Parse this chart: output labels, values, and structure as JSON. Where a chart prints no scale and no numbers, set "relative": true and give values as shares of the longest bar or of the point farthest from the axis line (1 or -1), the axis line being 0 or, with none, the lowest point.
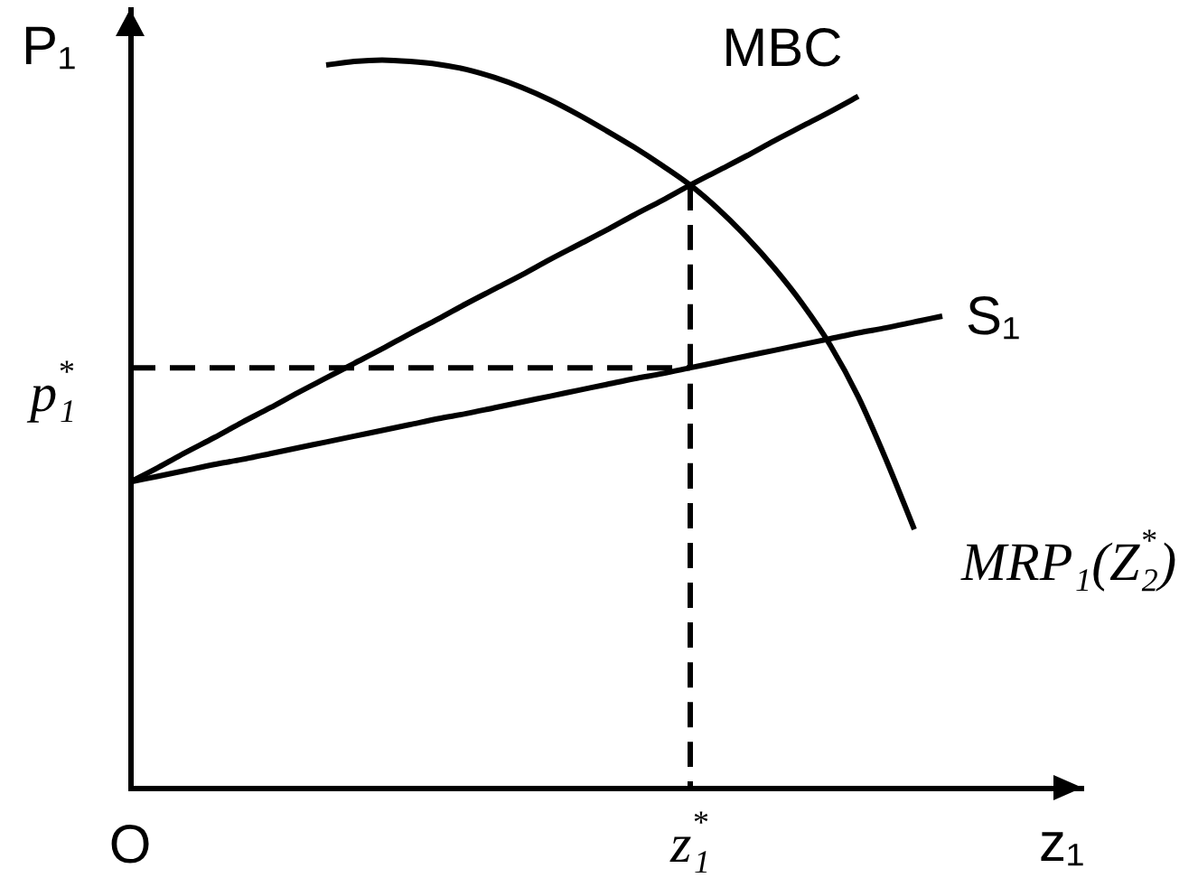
{
  "chart_data": {
    "type": "line",
    "relative": true,
    "ylabel": "P₁",
    "xlabel": "z₁",
    "marker": "none",
    "line_style": "solid",
    "categories": [
      "O",
      null,
      null,
      null,
      null,
      null,
      null,
      null,
      null,
      null,
      null,
      null,
      null,
      null,
      null,
      null,
      null,
      null,
      null,
      null,
      "z₁$^{*}$",
      null,
      null,
      null,
      null,
      null,
      null,
      null,
      null,
      null,
      null,
      null,
      null,
      null,
      null
    ],
    "annotations": [
      {
        "text": "p₁$^{*}$",
        "x": "O",
        "y": 0.577
      }
    ],
    "series": [
      {
        "name": "MBC",
        "color": "#000000",
        "values": [
          0.42,
          0.44,
          0.461,
          0.481,
          0.502,
          0.522,
          0.543,
          0.563,
          0.583,
          0.603,
          0.624,
          0.644,
          0.665,
          0.685,
          0.705,
          0.726,
          0.746,
          0.766,
          0.787,
          0.807,
          0.828,
          0.848,
          0.868,
          0.889,
          0.909,
          0.929,
          0.95,
          null,
          null,
          null,
          null,
          null,
          null,
          null,
          null
        ]
      },
      {
        "name": "S₁",
        "color": "#000000",
        "values": [
          0.42,
          0.428,
          0.436,
          0.444,
          0.451,
          0.459,
          0.467,
          0.475,
          0.483,
          0.491,
          0.499,
          0.507,
          0.514,
          0.522,
          0.53,
          0.538,
          0.546,
          0.554,
          0.562,
          0.569,
          0.577,
          0.585,
          0.593,
          0.601,
          0.609,
          0.617,
          0.625,
          0.632,
          0.64,
          0.648,
          null,
          null,
          null,
          null,
          null
        ]
      },
      {
        "name": "MRP₁(Z₂$^{*}$)",
        "color": "#000000",
        "values": [
          null,
          null,
          null,
          null,
          null,
          null,
          null,
          0.993,
          0.998,
          1,
          0.998,
          0.994,
          0.987,
          0.976,
          0.962,
          0.945,
          0.925,
          0.903,
          0.88,
          0.855,
          0.828,
          0.795,
          0.757,
          0.714,
          0.665,
          0.608,
          0.537,
          0.45,
          0.355,
          null,
          null,
          null,
          null,
          null,
          null
        ]
      },
      {
        "color": "#000000",
        "x": [
          "O",
          "z₁$^{*}$"
        ],
        "values": [
          0.577,
          0.577
        ],
        "line_style": "dashed"
      },
      {
        "color": "#000000",
        "x": [
          "z₁$^{*}$",
          "z₁$^{*}$"
        ],
        "values": [
          0.828,
          0
        ],
        "line_style": "dashed"
      }
    ]
  }
}
